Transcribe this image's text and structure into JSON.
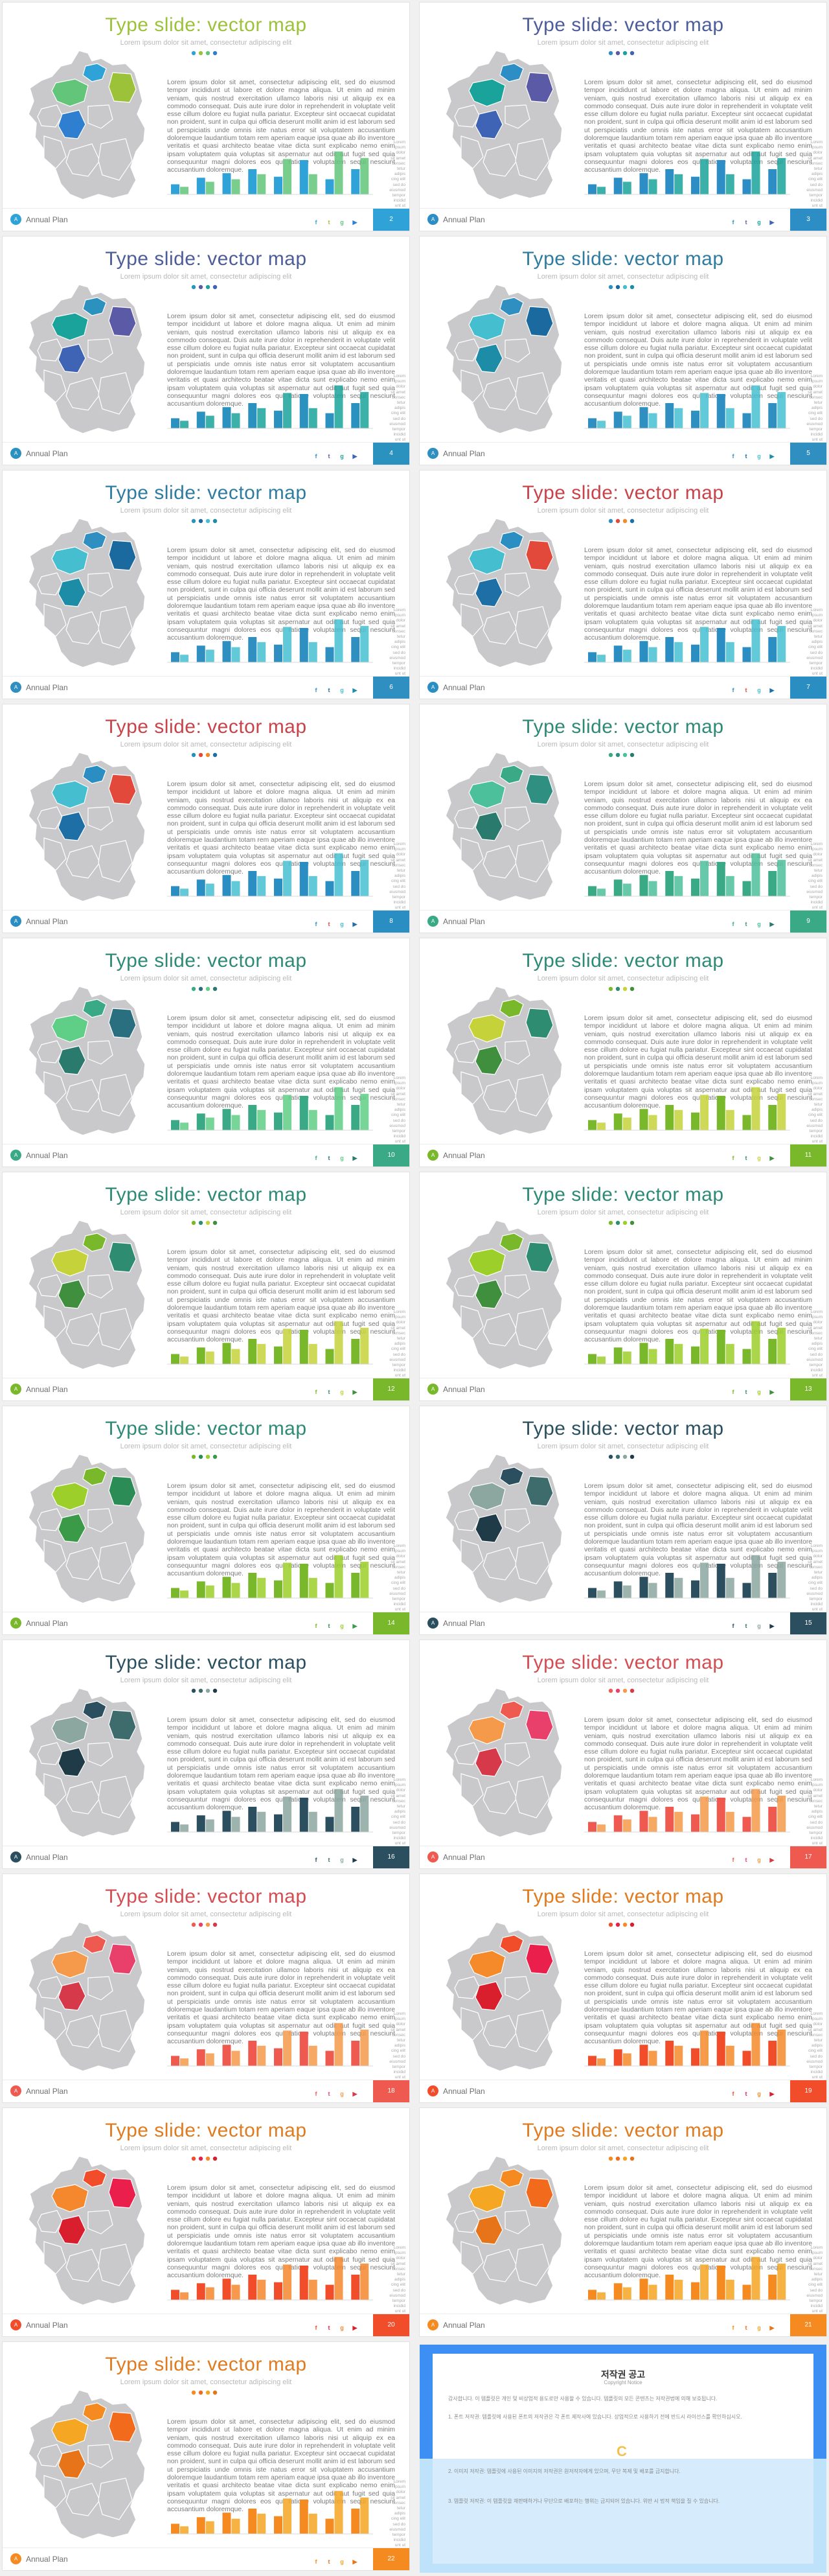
{
  "common": {
    "title": "Type slide: vector map",
    "subtitle": "Lorem ipsum dolor sit amet, consectetur adipiscing elit",
    "body": "Lorem ipsum dolor sit amet, consectetur adipiscing elit, sed do eiusmod tempor incididunt ut labore et dolore magna aliqua. Ut enim ad minim veniam, quis nostrud exercitation ullamco laboris nisi ut aliquip ex ea commodo consequat. Duis aute irure dolor in reprehenderit in voluptate velit esse cillum dolore eu fugiat nulla pariatur. Excepteur sint occaecat cupidatat non proident, sunt in culpa qui officia deserunt mollit anim id est laborum sed ut perspiciatis unde omnis iste natus error sit voluptatem accusantium doloremque laudantium totam rem aperiam eaque ipsa quae ab illo inventore veritatis et quasi architecto beatae vitae dicta sunt explicabo nemo enim ipsam voluptatem quia voluptas sit aspernatur aut odit aut fugit sed quia consequuntur magni dolores eos qui ratione voluptatem sequi nesciunt accusantium doloremque.",
    "footer_label": "Annual Plan",
    "logo_text": "A",
    "social": [
      "f",
      "t",
      "g",
      "▶"
    ],
    "legend": [
      "Lorem",
      "ipsum",
      "dolor",
      "sit amet",
      "consec",
      "tetur",
      "adipis",
      "cing elit",
      "sed do",
      "eiusmod",
      "tempor",
      "incidid",
      "unt ut",
      "labore"
    ],
    "chart_data": {
      "type": "bar",
      "categories": [
        "1",
        "2",
        "3",
        "4",
        "5",
        "6",
        "7",
        "8"
      ],
      "series": [
        {
          "name": "Series 1",
          "values": [
            2.0,
            3.3,
            4.2,
            5.0,
            3.5,
            6.8,
            3.0,
            5.0
          ]
        },
        {
          "name": "Series 2",
          "values": [
            1.5,
            2.5,
            3.0,
            4.0,
            7.0,
            4.0,
            8.5,
            7.2
          ]
        }
      ],
      "ylim": [
        0,
        10
      ]
    }
  },
  "slides": [
    {
      "page": "2",
      "title_color": "#9cc23a",
      "palette": [
        "#2fa3d8",
        "#9cc23a",
        "#62c57a",
        "#2f7fd0"
      ],
      "dots": [
        "#2fa3d8",
        "#9cc23a",
        "#62c57a",
        "#2f7fd0"
      ]
    },
    {
      "page": "3",
      "title_color": "#4d5d9a",
      "palette": [
        "#2c8ec5",
        "#5b5aa6",
        "#1aa39a",
        "#3f63b5"
      ],
      "dots": [
        "#2c8ec5",
        "#5b5aa6",
        "#1aa39a",
        "#3f63b5"
      ]
    },
    {
      "page": "4",
      "title_color": "#4d5d9a",
      "palette": [
        "#2b92c0",
        "#5b5aa6",
        "#1aa39a",
        "#3f63b5"
      ],
      "dots": [
        "#2b92c0",
        "#5b5aa6",
        "#1aa39a",
        "#3f63b5"
      ]
    },
    {
      "page": "5",
      "title_color": "#2e7ca0",
      "palette": [
        "#2e8fc0",
        "#1a6aa0",
        "#45bfd0",
        "#1d8ca6"
      ],
      "dots": [
        "#2e8fc0",
        "#1a6aa0",
        "#45bfd0",
        "#1d8ca6"
      ]
    },
    {
      "page": "6",
      "title_color": "#2e7ca0",
      "palette": [
        "#2e8fc0",
        "#1a6aa0",
        "#45bfd0",
        "#1d8ca6"
      ],
      "dots": [
        "#2e8fc0",
        "#1a6aa0",
        "#45bfd0",
        "#1d8ca6"
      ]
    },
    {
      "page": "7",
      "title_color": "#c8434a",
      "palette": [
        "#2b8ec3",
        "#e3493b",
        "#45bfd0",
        "#1d6fa6"
      ],
      "dots": [
        "#2b8ec3",
        "#e3493b",
        "#f08a2a",
        "#1d6fa6"
      ]
    },
    {
      "page": "8",
      "title_color": "#c8434a",
      "palette": [
        "#2b8ec3",
        "#e3493b",
        "#45bfd0",
        "#1d6fa6"
      ],
      "dots": [
        "#2b8ec3",
        "#e3493b",
        "#f08a2a",
        "#1d6fa6"
      ]
    },
    {
      "page": "9",
      "title_color": "#2d8a76",
      "palette": [
        "#3aa986",
        "#2f8f80",
        "#4cc09a",
        "#2a7a6d"
      ],
      "dots": [
        "#3aa986",
        "#2f8f80",
        "#4cc09a",
        "#2a7a6d"
      ]
    },
    {
      "page": "10",
      "title_color": "#2d8a76",
      "palette": [
        "#3aa986",
        "#2a6f80",
        "#5fce86",
        "#2a7a6d"
      ],
      "dots": [
        "#3aa986",
        "#2a6f80",
        "#5fce86",
        "#2a7a6d"
      ]
    },
    {
      "page": "11",
      "title_color": "#2d8a76",
      "palette": [
        "#7ab82b",
        "#2e8d70",
        "#c6d23a",
        "#3f8f3e"
      ],
      "dots": [
        "#7ab82b",
        "#2e8d70",
        "#c6d23a",
        "#3f8f3e"
      ]
    },
    {
      "page": "12",
      "title_color": "#2d8a76",
      "palette": [
        "#7ab82b",
        "#2e8d70",
        "#c6d23a",
        "#3f8f3e"
      ],
      "dots": [
        "#7ab82b",
        "#2e8d70",
        "#c6d23a",
        "#3f8f3e"
      ]
    },
    {
      "page": "13",
      "title_color": "#2d8a76",
      "palette": [
        "#7ab82b",
        "#2e8d70",
        "#9ccf2a",
        "#3f8f3e"
      ],
      "dots": [
        "#7ab82b",
        "#2e8d70",
        "#9ccf2a",
        "#3f8f3e"
      ]
    },
    {
      "page": "14",
      "title_color": "#2d8a76",
      "palette": [
        "#7ab82b",
        "#2b8c55",
        "#9ccf2a",
        "#3a9a48"
      ],
      "dots": [
        "#7ab82b",
        "#2b8c55",
        "#9ccf2a",
        "#3a9a48"
      ]
    },
    {
      "page": "15",
      "title_color": "#2a4f5e",
      "palette": [
        "#2b4f5f",
        "#3e6b6c",
        "#8ca6a0",
        "#1f3b48"
      ],
      "dots": [
        "#2b4f5f",
        "#3e6b6c",
        "#8ca6a0",
        "#1f3b48"
      ]
    },
    {
      "page": "16",
      "title_color": "#2a4f5e",
      "palette": [
        "#2b4f5f",
        "#3e6b6c",
        "#8ca6a0",
        "#1f3b48"
      ],
      "dots": [
        "#2b4f5f",
        "#3e6b6c",
        "#8ca6a0",
        "#1f3b48"
      ]
    },
    {
      "page": "17",
      "title_color": "#d44d52",
      "palette": [
        "#ee5a4f",
        "#e8406a",
        "#f59a4a",
        "#d6394a"
      ],
      "dots": [
        "#ee5a4f",
        "#e8406a",
        "#f59a4a",
        "#d6394a"
      ]
    },
    {
      "page": "18",
      "title_color": "#d44d52",
      "palette": [
        "#ee5a4f",
        "#e8406a",
        "#f59a4a",
        "#d6394a"
      ],
      "dots": [
        "#ee5a4f",
        "#e8406a",
        "#f59a4a",
        "#d6394a"
      ]
    },
    {
      "page": "19",
      "title_color": "#e07b1f",
      "palette": [
        "#f24d2b",
        "#ea1f4b",
        "#f58a2a",
        "#d91f2e"
      ],
      "dots": [
        "#f24d2b",
        "#ea1f4b",
        "#f58a2a",
        "#d91f2e"
      ]
    },
    {
      "page": "20",
      "title_color": "#e07b1f",
      "palette": [
        "#f24d2b",
        "#ea1f4b",
        "#f5872d",
        "#d91f2e"
      ],
      "dots": [
        "#f24d2b",
        "#ea1f4b",
        "#f5872d",
        "#d91f2e"
      ]
    },
    {
      "page": "21",
      "title_color": "#e07b1f",
      "palette": [
        "#f58a20",
        "#f26b1c",
        "#f5a623",
        "#e8741a"
      ],
      "dots": [
        "#f58a20",
        "#f26b1c",
        "#f5a623",
        "#e8741a"
      ]
    },
    {
      "page": "22",
      "title_color": "#e07b1f",
      "palette": [
        "#f58a20",
        "#f26b1c",
        "#f5a623",
        "#e8741a"
      ],
      "dots": [
        "#f58a20",
        "#f26b1c",
        "#f5a623",
        "#e8741a"
      ]
    }
  ],
  "notice": {
    "title": "저작권 공고",
    "subtitle": "Copyright Notice",
    "badge": "C",
    "paragraphs": [
      "감사합니다. 이 템플릿은 개인 및 비상업적 용도로만 사용할 수 있습니다. 템플릿의 모든 콘텐츠는 저작권법에 의해 보호됩니다.",
      "1. 폰트 저작권: 템플릿에 사용된 폰트의 저작권은 각 폰트 제작사에 있습니다. 상업적으로 사용하기 전에 반드시 라이선스를 확인하십시오.",
      "2. 이미지 저작권: 템플릿에 사용된 이미지의 저작권은 원저작자에게 있으며, 무단 복제 및 배포를 금지합니다.",
      "3. 템플릿 저작권: 이 템플릿을 재판매하거나 무단으로 배포하는 행위는 금지되어 있습니다. 위반 시 법적 책임을 질 수 있습니다."
    ]
  }
}
